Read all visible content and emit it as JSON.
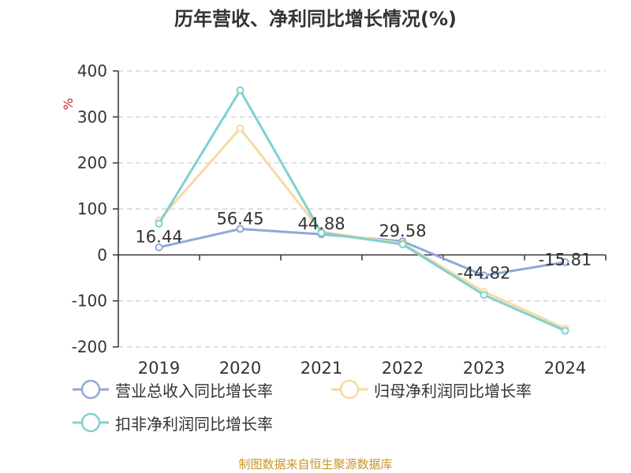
{
  "chart_data": {
    "type": "line",
    "title": "历年营收、净利同比增长情况(%)",
    "ylabel": "%",
    "xlabel": "",
    "categories": [
      "2019",
      "2020",
      "2021",
      "2022",
      "2023",
      "2024"
    ],
    "ylim": [
      -200,
      400
    ],
    "yticks": [
      400,
      300,
      200,
      100,
      0,
      -100,
      -200
    ],
    "grid": true,
    "legend_position": "bottom",
    "series": [
      {
        "name": "营业总收入同比增长率",
        "color": "#8fa8d8",
        "values": [
          16.44,
          56.45,
          44.88,
          29.58,
          -44.82,
          -15.81
        ],
        "labels": [
          "16.44",
          "56.45",
          "44.88",
          "29.58",
          "-44.82",
          "-15.81"
        ]
      },
      {
        "name": "归母净利润同比增长率",
        "color": "#f7d9a0",
        "values": [
          75,
          275,
          50,
          25,
          -80,
          -160
        ]
      },
      {
        "name": "扣非净利润同比增长率",
        "color": "#80d0d0",
        "values": [
          68,
          358,
          48,
          23,
          -87,
          -165
        ]
      }
    ]
  },
  "footer": {
    "source": "制图数据来自恒生聚源数据库"
  }
}
